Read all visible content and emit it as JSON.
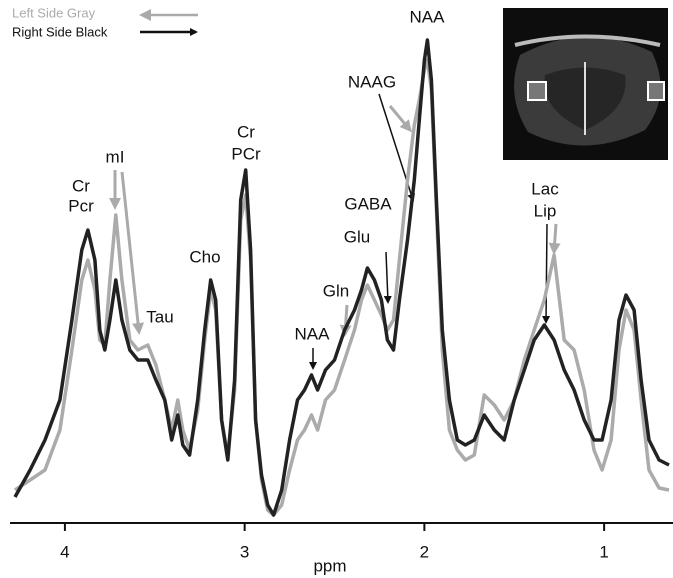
{
  "chart_data": {
    "type": "line",
    "xlabel": "ppm",
    "xlim": [
      4.3,
      0.62
    ],
    "xticks": [
      4,
      3,
      2,
      1
    ],
    "ylim": [
      0,
      100
    ],
    "x": [
      4.278,
      4.194,
      4.111,
      4.028,
      3.961,
      3.906,
      3.872,
      3.833,
      3.806,
      3.778,
      3.75,
      3.717,
      3.683,
      3.639,
      3.594,
      3.539,
      3.494,
      3.444,
      3.406,
      3.372,
      3.344,
      3.306,
      3.261,
      3.222,
      3.189,
      3.161,
      3.128,
      3.094,
      3.056,
      3.022,
      2.994,
      2.967,
      2.939,
      2.906,
      2.872,
      2.839,
      2.794,
      2.75,
      2.706,
      2.667,
      2.628,
      2.594,
      2.55,
      2.5,
      2.444,
      2.389,
      2.35,
      2.317,
      2.278,
      2.239,
      2.206,
      2.172,
      2.139,
      2.094,
      2.056,
      2.028,
      2.0,
      1.983,
      1.961,
      1.933,
      1.9,
      1.861,
      1.817,
      1.772,
      1.722,
      1.667,
      1.611,
      1.556,
      1.5,
      1.444,
      1.389,
      1.333,
      1.278,
      1.222,
      1.167,
      1.111,
      1.056,
      1.011,
      0.961,
      0.917,
      0.878,
      0.833,
      0.794,
      0.75,
      0.694,
      0.639
    ],
    "series": [
      {
        "name": "Left Side Gray",
        "color": "#ababab",
        "values": [
          6.6,
          8.6,
          10.6,
          18.6,
          34.6,
          48.6,
          52.6,
          46.6,
          36.6,
          35.6,
          48.6,
          61.6,
          48.6,
          36.6,
          34.6,
          35.6,
          31.6,
          24.6,
          18.6,
          24.6,
          18.6,
          14.6,
          22.6,
          36.6,
          46.6,
          42.6,
          20.6,
          13.6,
          26.6,
          60.6,
          65.6,
          52.6,
          20.6,
          8.6,
          2.6,
          1.6,
          3.6,
          10.6,
          16.6,
          18.6,
          21.6,
          18.6,
          24.6,
          26.6,
          32.6,
          38.6,
          44.6,
          47.6,
          44.6,
          41.6,
          38.6,
          40.6,
          52.6,
          68.6,
          79.6,
          84.6,
          90.6,
          92.6,
          86.6,
          62.6,
          34.6,
          18.6,
          14.6,
          12.6,
          13.6,
          25.6,
          23.6,
          20.6,
          24.6,
          32.6,
          38.6,
          44.6,
          53.6,
          36.6,
          34.6,
          26.6,
          14.6,
          10.6,
          16.6,
          34.6,
          42.6,
          38.6,
          24.6,
          10.6,
          7,
          6.6
        ]
      },
      {
        "name": "Right Side Black",
        "color": "#222222",
        "values": [
          5.2,
          10.6,
          16.6,
          24.6,
          40.6,
          54.6,
          58.6,
          52.6,
          38.6,
          34.6,
          40.6,
          48.6,
          40.6,
          34.6,
          32.6,
          32.6,
          28.6,
          24.6,
          16.6,
          21.6,
          15.6,
          13.6,
          24.6,
          38.6,
          48.6,
          44.6,
          20.6,
          12.6,
          28.6,
          64.6,
          70.6,
          54.6,
          20.6,
          9.6,
          3.6,
          1.6,
          6.6,
          16.6,
          24.6,
          26.6,
          29.6,
          26.6,
          30.6,
          32.6,
          38.6,
          42.6,
          46.6,
          51,
          48.6,
          44.6,
          36.6,
          34.6,
          44.6,
          56.6,
          68.6,
          80.6,
          92.6,
          96.6,
          88.6,
          64.6,
          38.6,
          24.6,
          16.6,
          15.6,
          16.6,
          21.6,
          18.6,
          16.6,
          24.6,
          30.6,
          36.6,
          39.6,
          36.6,
          30.6,
          26.6,
          20.6,
          16.6,
          16.6,
          24.6,
          40.6,
          45.6,
          42.6,
          28.6,
          16.6,
          12.6,
          11.6
        ]
      }
    ],
    "annotations": [
      "Cr",
      "Pcr",
      "mI",
      "Tau",
      "Cho",
      "Cr",
      "PCr",
      "NAA",
      "Gln",
      "GABA",
      "Glu",
      "NAAG",
      "NAA",
      "Lac",
      "Lip"
    ]
  }
}
